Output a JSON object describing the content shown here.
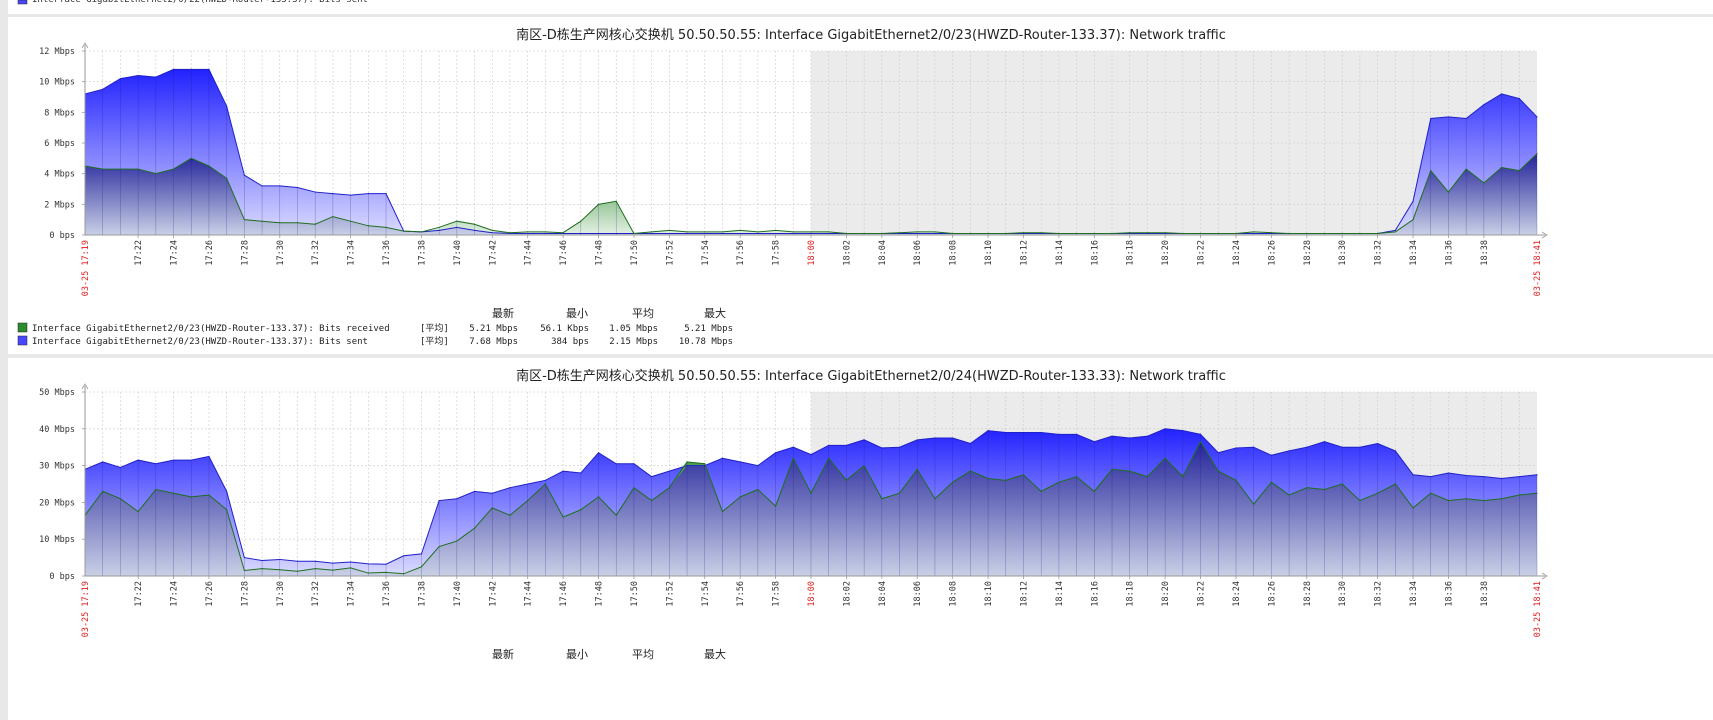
{
  "top_strip": {
    "legend_partial": "Interface GigabitEthernet2/0/22(HWZD-Router-133.37): Bits sent"
  },
  "chart_data": [
    {
      "type": "area",
      "title": "南区-D栋生产网核心交换机 50.50.50.55: Interface GigabitEthernet2/0/23(HWZD-Router-133.37): Network traffic",
      "ylim": [
        0,
        12
      ],
      "y_tick_values": [
        0,
        2,
        4,
        6,
        8,
        10,
        12
      ],
      "y_tick_labels": [
        "0 bps",
        "2 Mbps",
        "4 Mbps",
        "6 Mbps",
        "8 Mbps",
        "10 Mbps",
        "12 Mbps"
      ],
      "x_start_minute": 0,
      "x_end_minute": 82,
      "x_start_label": "03-25 17:19",
      "x_end_label": "03-25 18:41",
      "x_ticks": [
        {
          "minute": 3,
          "label": "17:22"
        },
        {
          "minute": 5,
          "label": "17:24"
        },
        {
          "minute": 7,
          "label": "17:26"
        },
        {
          "minute": 9,
          "label": "17:28"
        },
        {
          "minute": 11,
          "label": "17:30"
        },
        {
          "minute": 13,
          "label": "17:32"
        },
        {
          "minute": 15,
          "label": "17:34"
        },
        {
          "minute": 17,
          "label": "17:36"
        },
        {
          "minute": 19,
          "label": "17:38"
        },
        {
          "minute": 21,
          "label": "17:40"
        },
        {
          "minute": 23,
          "label": "17:42"
        },
        {
          "minute": 25,
          "label": "17:44"
        },
        {
          "minute": 27,
          "label": "17:46"
        },
        {
          "minute": 29,
          "label": "17:48"
        },
        {
          "minute": 31,
          "label": "17:50"
        },
        {
          "minute": 33,
          "label": "17:52"
        },
        {
          "minute": 35,
          "label": "17:54"
        },
        {
          "minute": 37,
          "label": "17:56"
        },
        {
          "minute": 39,
          "label": "17:58"
        },
        {
          "minute": 41,
          "label": "18:00",
          "highlight": true
        },
        {
          "minute": 43,
          "label": "18:02"
        },
        {
          "minute": 45,
          "label": "18:04"
        },
        {
          "minute": 47,
          "label": "18:06"
        },
        {
          "minute": 49,
          "label": "18:08"
        },
        {
          "minute": 51,
          "label": "18:10"
        },
        {
          "minute": 53,
          "label": "18:12"
        },
        {
          "minute": 55,
          "label": "18:14"
        },
        {
          "minute": 57,
          "label": "18:16"
        },
        {
          "minute": 59,
          "label": "18:18"
        },
        {
          "minute": 61,
          "label": "18:20"
        },
        {
          "minute": 63,
          "label": "18:22"
        },
        {
          "minute": 65,
          "label": "18:24"
        },
        {
          "minute": 67,
          "label": "18:26"
        },
        {
          "minute": 69,
          "label": "18:28"
        },
        {
          "minute": 71,
          "label": "18:30"
        },
        {
          "minute": 73,
          "label": "18:32"
        },
        {
          "minute": 75,
          "label": "18:34"
        },
        {
          "minute": 77,
          "label": "18:36"
        },
        {
          "minute": 79,
          "label": "18:38"
        }
      ],
      "shaded_from_minute": 41,
      "series": [
        {
          "name": "Interface GigabitEthernet2/0/23(HWZD-Router-133.37): Bits sent",
          "color": "#4747ff",
          "values": [
            9.2,
            9.5,
            10.2,
            10.4,
            10.3,
            10.8,
            10.8,
            10.8,
            8.4,
            3.9,
            3.2,
            3.2,
            3.1,
            2.8,
            2.7,
            2.6,
            2.7,
            2.7,
            0.25,
            0.2,
            0.3,
            0.5,
            0.3,
            0.15,
            0.1,
            0.1,
            0.1,
            0.1,
            0.1,
            0.1,
            0.1,
            0.1,
            0.1,
            0.1,
            0.1,
            0.1,
            0.1,
            0.1,
            0.1,
            0.1,
            0.1,
            0.1,
            0.1,
            0.1,
            0.1,
            0.1,
            0.1,
            0.1,
            0.1,
            0.1,
            0.1,
            0.1,
            0.1,
            0.1,
            0.1,
            0.1,
            0.1,
            0.1,
            0.1,
            0.1,
            0.1,
            0.1,
            0.1,
            0.1,
            0.1,
            0.1,
            0.1,
            0.1,
            0.1,
            0.1,
            0.1,
            0.1,
            0.1,
            0.1,
            0.3,
            2.2,
            7.6,
            7.7,
            7.6,
            8.5,
            9.2,
            8.9,
            7.7
          ]
        },
        {
          "name": "Interface GigabitEthernet2/0/23(HWZD-Router-133.37): Bits received",
          "color": "#2a8c2a",
          "values": [
            4.5,
            4.3,
            4.3,
            4.3,
            4.0,
            4.3,
            5.0,
            4.5,
            3.7,
            1.0,
            0.9,
            0.8,
            0.8,
            0.7,
            1.2,
            0.9,
            0.6,
            0.5,
            0.25,
            0.2,
            0.5,
            0.9,
            0.7,
            0.3,
            0.15,
            0.2,
            0.2,
            0.15,
            0.9,
            2.0,
            2.2,
            0.1,
            0.2,
            0.3,
            0.2,
            0.2,
            0.2,
            0.3,
            0.2,
            0.3,
            0.2,
            0.2,
            0.2,
            0.1,
            0.1,
            0.1,
            0.15,
            0.2,
            0.2,
            0.1,
            0.1,
            0.1,
            0.1,
            0.15,
            0.15,
            0.1,
            0.1,
            0.1,
            0.1,
            0.15,
            0.15,
            0.15,
            0.1,
            0.1,
            0.1,
            0.1,
            0.2,
            0.15,
            0.1,
            0.1,
            0.1,
            0.1,
            0.1,
            0.1,
            0.2,
            1.0,
            4.2,
            2.8,
            4.3,
            3.4,
            4.4,
            4.2,
            5.3
          ]
        }
      ],
      "legend": {
        "headers": [
          "最新",
          "最小",
          "平均",
          "最大"
        ],
        "rows": [
          {
            "color": "#2a8c2a",
            "label": "Interface GigabitEthernet2/0/23(HWZD-Router-133.37): Bits received",
            "func": "[平均]",
            "last": "5.21 Mbps",
            "min": "56.1 Kbps",
            "avg": "1.05 Mbps",
            "max": "5.21 Mbps"
          },
          {
            "color": "#4747ff",
            "label": "Interface GigabitEthernet2/0/23(HWZD-Router-133.37): Bits sent",
            "func": "[平均]",
            "last": "7.68 Mbps",
            "min": "384 bps",
            "avg": "2.15 Mbps",
            "max": "10.78 Mbps"
          }
        ]
      }
    },
    {
      "type": "area",
      "title": "南区-D栋生产网核心交换机 50.50.50.55: Interface GigabitEthernet2/0/24(HWZD-Router-133.33): Network traffic",
      "ylim": [
        0,
        50
      ],
      "y_tick_values": [
        0,
        10,
        20,
        30,
        40,
        50
      ],
      "y_tick_labels": [
        "0 bps",
        "10 Mbps",
        "20 Mbps",
        "30 Mbps",
        "40 Mbps",
        "50 Mbps"
      ],
      "x_start_minute": 0,
      "x_end_minute": 82,
      "x_start_label": "03-25 17:19",
      "x_end_label": "03-25 18:41",
      "x_ticks": [
        {
          "minute": 3,
          "label": "17:22"
        },
        {
          "minute": 5,
          "label": "17:24"
        },
        {
          "minute": 7,
          "label": "17:26"
        },
        {
          "minute": 9,
          "label": "17:28"
        },
        {
          "minute": 11,
          "label": "17:30"
        },
        {
          "minute": 13,
          "label": "17:32"
        },
        {
          "minute": 15,
          "label": "17:34"
        },
        {
          "minute": 17,
          "label": "17:36"
        },
        {
          "minute": 19,
          "label": "17:38"
        },
        {
          "minute": 21,
          "label": "17:40"
        },
        {
          "minute": 23,
          "label": "17:42"
        },
        {
          "minute": 25,
          "label": "17:44"
        },
        {
          "minute": 27,
          "label": "17:46"
        },
        {
          "minute": 29,
          "label": "17:48"
        },
        {
          "minute": 31,
          "label": "17:50"
        },
        {
          "minute": 33,
          "label": "17:52"
        },
        {
          "minute": 35,
          "label": "17:54"
        },
        {
          "minute": 37,
          "label": "17:56"
        },
        {
          "minute": 39,
          "label": "17:58"
        },
        {
          "minute": 41,
          "label": "18:00",
          "highlight": true
        },
        {
          "minute": 43,
          "label": "18:02"
        },
        {
          "minute": 45,
          "label": "18:04"
        },
        {
          "minute": 47,
          "label": "18:06"
        },
        {
          "minute": 49,
          "label": "18:08"
        },
        {
          "minute": 51,
          "label": "18:10"
        },
        {
          "minute": 53,
          "label": "18:12"
        },
        {
          "minute": 55,
          "label": "18:14"
        },
        {
          "minute": 57,
          "label": "18:16"
        },
        {
          "minute": 59,
          "label": "18:18"
        },
        {
          "minute": 61,
          "label": "18:20"
        },
        {
          "minute": 63,
          "label": "18:22"
        },
        {
          "minute": 65,
          "label": "18:24"
        },
        {
          "minute": 67,
          "label": "18:26"
        },
        {
          "minute": 69,
          "label": "18:28"
        },
        {
          "minute": 71,
          "label": "18:30"
        },
        {
          "minute": 73,
          "label": "18:32"
        },
        {
          "minute": 75,
          "label": "18:34"
        },
        {
          "minute": 77,
          "label": "18:36"
        },
        {
          "minute": 79,
          "label": "18:38"
        }
      ],
      "shaded_from_minute": 41,
      "series": [
        {
          "name": "",
          "color": "#4747ff",
          "values": [
            29,
            31,
            29.5,
            31.5,
            30.5,
            31.5,
            31.5,
            32.5,
            23,
            5,
            4.2,
            4.5,
            4,
            4,
            3.5,
            3.8,
            3.3,
            3.2,
            5.5,
            6,
            20.5,
            21,
            23,
            22.5,
            24,
            25,
            26,
            28.5,
            28,
            33.5,
            30.5,
            30.5,
            27,
            28.5,
            30,
            30,
            32,
            31,
            30,
            33.5,
            35,
            33,
            35.5,
            35.5,
            37,
            34.8,
            35,
            37,
            37.5,
            37.5,
            36,
            39.5,
            39,
            39,
            39,
            38.5,
            38.5,
            36.5,
            38,
            37.5,
            38,
            40,
            39.5,
            38.5,
            33.5,
            34.8,
            35,
            32.8,
            34,
            35,
            36.5,
            35,
            35,
            36,
            34,
            27.5,
            27,
            28,
            27.3,
            27,
            26.5,
            27,
            27.5
          ]
        },
        {
          "name": "",
          "color": "#2a8c2a",
          "values": [
            16.5,
            23,
            21,
            17.5,
            23.5,
            22.5,
            21.5,
            22,
            18,
            1.5,
            2,
            1.7,
            1.3,
            2,
            1.6,
            2.2,
            0.8,
            1,
            0.6,
            2.5,
            8,
            9.5,
            13,
            18.5,
            16.5,
            20.5,
            25,
            16,
            18,
            21.5,
            16.5,
            24,
            20.5,
            24,
            31,
            30.5,
            17.5,
            21.5,
            23.5,
            19,
            32,
            22.5,
            32,
            26,
            30,
            21,
            22.5,
            29,
            21,
            25.5,
            28.5,
            26.5,
            26,
            27.5,
            23,
            25.5,
            27,
            23,
            29,
            28.5,
            27,
            32,
            27,
            36.5,
            28.5,
            26,
            19.5,
            25.5,
            22,
            24,
            23.5,
            25,
            20.5,
            22.5,
            25,
            18.5,
            22.5,
            20.5,
            21,
            20.5,
            21,
            22,
            22.5
          ]
        }
      ],
      "legend": {
        "headers": [
          "最新",
          "最小",
          "平均",
          "最大"
        ],
        "rows": []
      }
    }
  ]
}
